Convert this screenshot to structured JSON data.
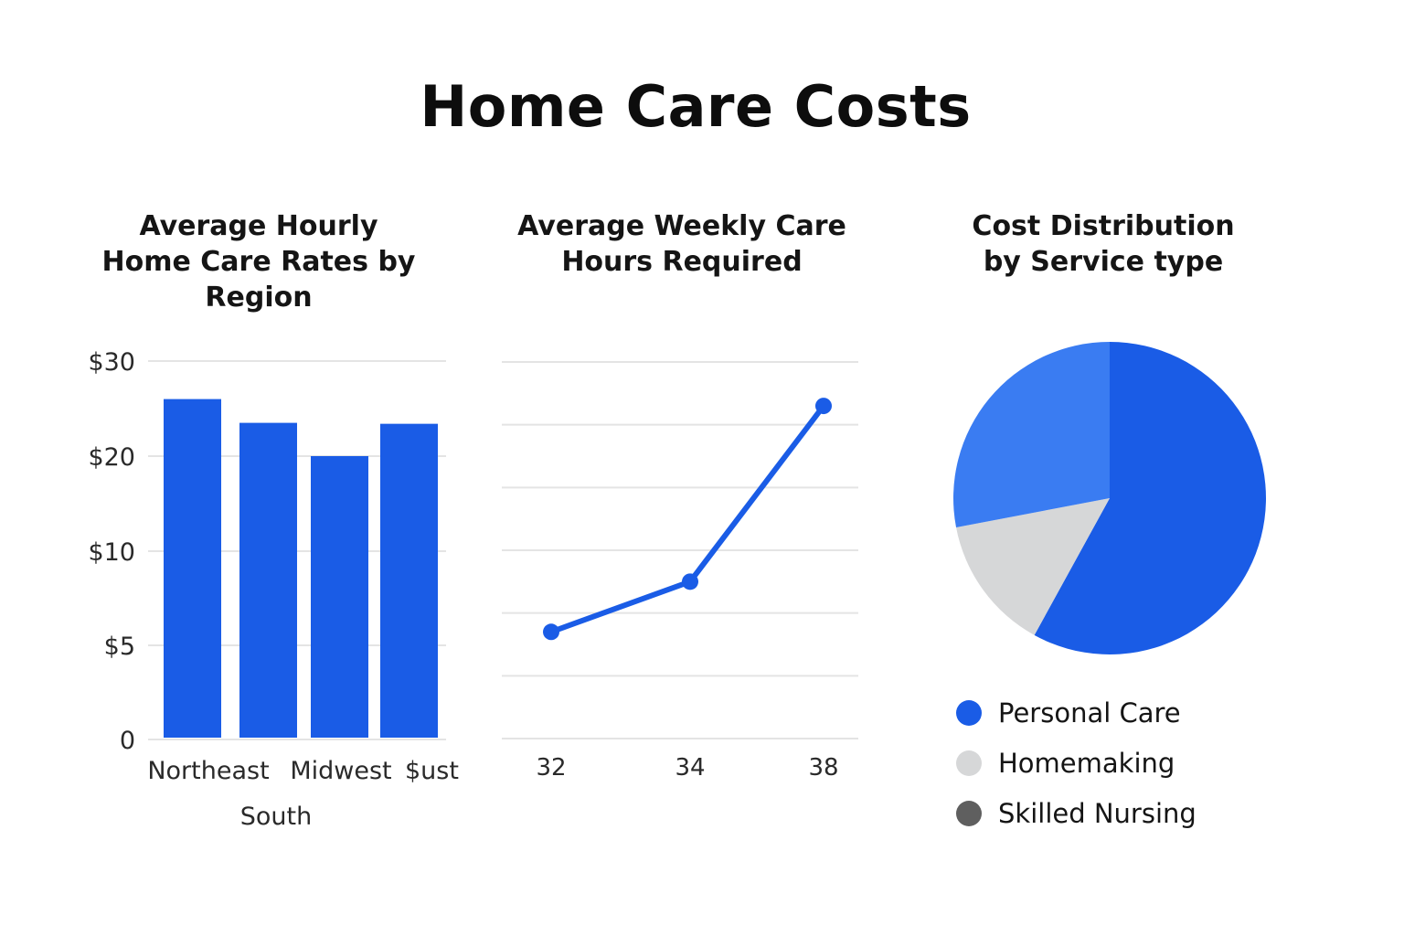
{
  "title": "Home Care Costs",
  "chart_data": [
    {
      "type": "bar",
      "title_lines": [
        "Average Hourly",
        "Home Care Rates by",
        "Region"
      ],
      "y_ticks": [
        {
          "label": "0",
          "value": 0
        },
        {
          "label": "$5",
          "value": 5
        },
        {
          "label": "$10",
          "value": 10
        },
        {
          "label": "$20",
          "value": 20
        },
        {
          "label": "$30",
          "value": 30
        }
      ],
      "x_labels": [
        "Northeast",
        "Midwest",
        "$ust"
      ],
      "x_label_extra": "South",
      "values": [
        26,
        23.5,
        20,
        23.4
      ],
      "color": "#1a5ce6",
      "grid": true
    },
    {
      "type": "line",
      "title_lines": [
        "Average Weekly Care",
        "Hours Required"
      ],
      "x": [
        "32",
        "34",
        "38"
      ],
      "values": [
        8.5,
        12.5,
        26.5
      ],
      "gridline_count": 7,
      "color": "#1a5ce6",
      "grid": true
    },
    {
      "type": "pie",
      "title_lines": [
        "Cost Distribution",
        "by Service type"
      ],
      "slices": [
        {
          "label": "Personal Care",
          "value": 58,
          "color": "#1a5ce6"
        },
        {
          "label": "Homemaking",
          "value": 14,
          "color": "#d6d7d8"
        },
        {
          "label": "",
          "value": 28,
          "color": "#3a7cf2"
        }
      ],
      "legend": [
        {
          "label": "Personal Care",
          "color": "#1a5ce6"
        },
        {
          "label": "Homemaking",
          "color": "#d6d7d8"
        },
        {
          "label": "Skilled Nursing",
          "color": "#5f5f5f"
        }
      ]
    }
  ]
}
